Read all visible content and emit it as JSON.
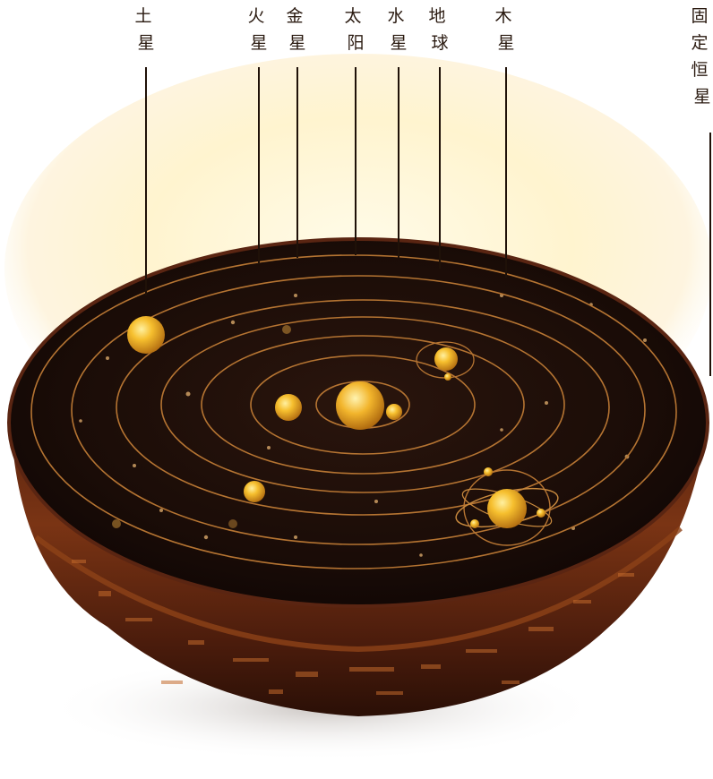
{
  "labels": [
    {
      "id": "saturn",
      "line1": "土",
      "line2": "星"
    },
    {
      "id": "mars",
      "line1": "火",
      "line2": "星"
    },
    {
      "id": "venus",
      "line1": "金",
      "line2": "星"
    },
    {
      "id": "sun",
      "line1": "太",
      "line2": "阳"
    },
    {
      "id": "mercury",
      "line1": "水",
      "line2": "星"
    },
    {
      "id": "earth",
      "line1": "地",
      "line2": "球"
    },
    {
      "id": "jupiter",
      "line1": "木",
      "line2": "星"
    },
    {
      "id": "fixed-stars",
      "line1": "固",
      "line2": "定",
      "line3": "恒",
      "line4": "星"
    }
  ],
  "colors": {
    "bowl_dark": "#1a0c08",
    "bowl_rim": "#6e2e12",
    "orbit": "#b57432",
    "planet": "#f2b22a",
    "glow": "#fff4c8"
  }
}
